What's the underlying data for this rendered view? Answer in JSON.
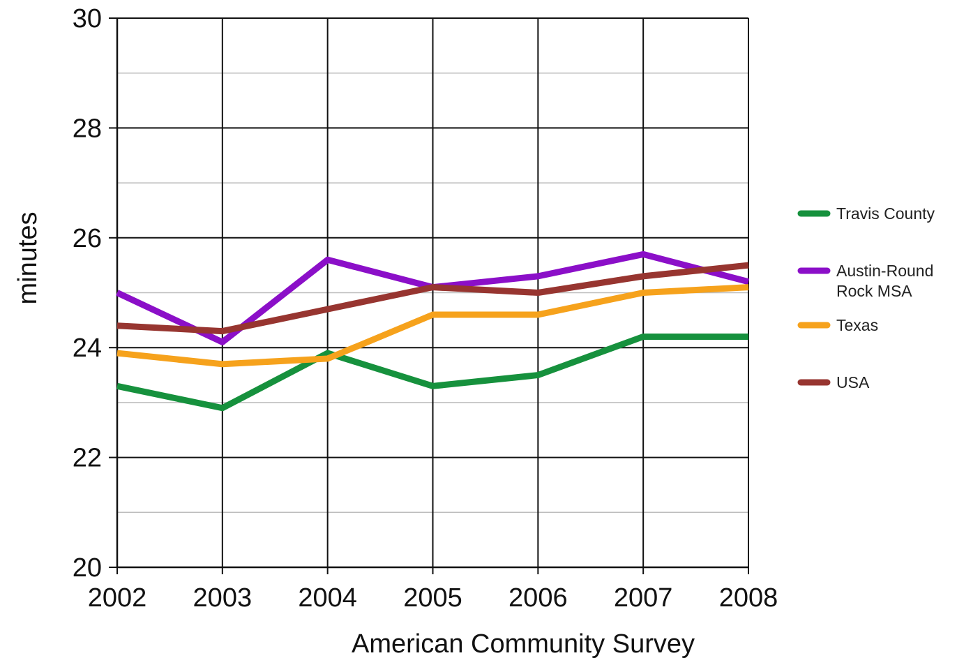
{
  "chart_data": {
    "type": "line",
    "title": "",
    "xlabel": "American Community Survey",
    "ylabel": "minutes",
    "categories": [
      "2002",
      "2003",
      "2004",
      "2005",
      "2006",
      "2007",
      "2008"
    ],
    "ylim": [
      20,
      30
    ],
    "yticks": [
      "20",
      "22",
      "24",
      "26",
      "28",
      "30"
    ],
    "grid": true,
    "legend_position": "right",
    "series": [
      {
        "name": "Travis County",
        "color": "#16913d",
        "values": [
          23.3,
          22.9,
          23.9,
          23.3,
          23.5,
          24.2,
          24.2
        ]
      },
      {
        "name": "Austin-Round Rock MSA",
        "legend_lines": [
          "Austin-Round",
          "Rock MSA"
        ],
        "color": "#8b0fc8",
        "values": [
          25.0,
          24.1,
          25.6,
          25.1,
          25.3,
          25.7,
          25.2
        ]
      },
      {
        "name": "Texas",
        "color": "#f6a21c",
        "values": [
          23.9,
          23.7,
          23.8,
          24.6,
          24.6,
          25.0,
          25.1
        ]
      },
      {
        "name": "USA",
        "color": "#973530",
        "values": [
          24.4,
          24.3,
          24.7,
          25.1,
          25.0,
          25.3,
          25.5
        ]
      }
    ]
  }
}
